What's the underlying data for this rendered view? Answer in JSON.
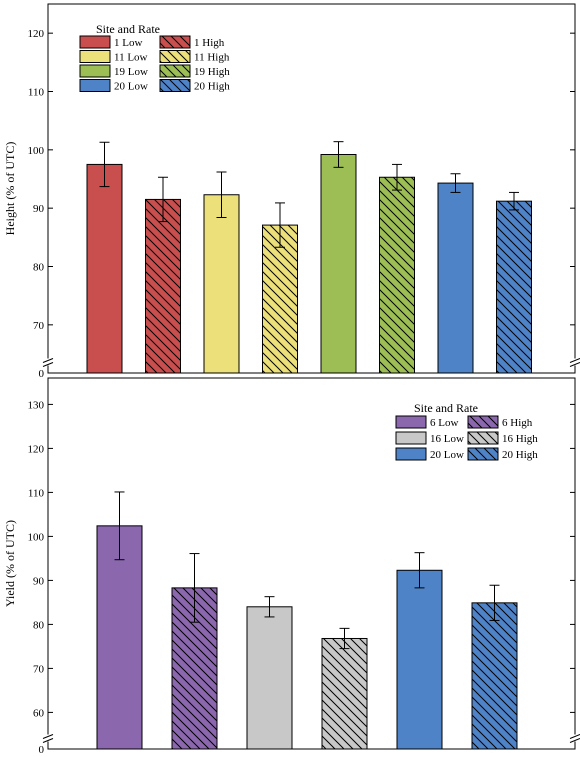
{
  "chart_data": [
    {
      "type": "bar",
      "title": "",
      "xlabel": "",
      "ylabel": "Height (% of UTC)",
      "ylim": [
        65,
        125
      ],
      "axis_break": true,
      "break_label": "0",
      "yticks": [
        70,
        80,
        90,
        100,
        110,
        120
      ],
      "legend_title": "Site and Rate",
      "legend_placement": "top-left",
      "grid": false,
      "bars": [
        {
          "name": "1 Low",
          "value": 97.5,
          "error": 3.8,
          "color": "#c94f4f",
          "hatch": false
        },
        {
          "name": "1 High",
          "value": 91.5,
          "error": 3.8,
          "color": "#c94f4f",
          "hatch": true
        },
        {
          "name": "11 Low",
          "value": 92.3,
          "error": 3.9,
          "color": "#ece07a",
          "hatch": false
        },
        {
          "name": "11 High",
          "value": 87.1,
          "error": 3.8,
          "color": "#ece07a",
          "hatch": true
        },
        {
          "name": "19 Low",
          "value": 99.2,
          "error": 2.2,
          "color": "#9dbe55",
          "hatch": false
        },
        {
          "name": "19 High",
          "value": 95.3,
          "error": 2.2,
          "color": "#9dbe55",
          "hatch": true
        },
        {
          "name": "20 Low",
          "value": 94.3,
          "error": 1.6,
          "color": "#4f83c8",
          "hatch": false
        },
        {
          "name": "20 High",
          "value": 91.2,
          "error": 1.5,
          "color": "#4f83c8",
          "hatch": true
        }
      ]
    },
    {
      "type": "bar",
      "title": "",
      "xlabel": "",
      "ylabel": "Yield (% of UTC)",
      "ylim": [
        56,
        136
      ],
      "axis_break": true,
      "break_label": "0",
      "yticks": [
        60,
        70,
        80,
        90,
        100,
        110,
        120,
        130
      ],
      "legend_title": "Site and Rate",
      "legend_placement": "top-right",
      "grid": false,
      "bars": [
        {
          "name": "6 Low",
          "value": 102.4,
          "error": 7.7,
          "color": "#8b67ad",
          "hatch": false
        },
        {
          "name": "6 High",
          "value": 88.3,
          "error": 7.8,
          "color": "#8b67ad",
          "hatch": true
        },
        {
          "name": "16 Low",
          "value": 84.0,
          "error": 2.3,
          "color": "#c8c8c8",
          "hatch": false
        },
        {
          "name": "16 High",
          "value": 76.8,
          "error": 2.3,
          "color": "#c8c8c8",
          "hatch": true
        },
        {
          "name": "20 Low",
          "value": 92.3,
          "error": 4.0,
          "color": "#4f83c8",
          "hatch": false
        },
        {
          "name": "20 High",
          "value": 84.9,
          "error": 4.0,
          "color": "#4f83c8",
          "hatch": true
        }
      ]
    }
  ]
}
